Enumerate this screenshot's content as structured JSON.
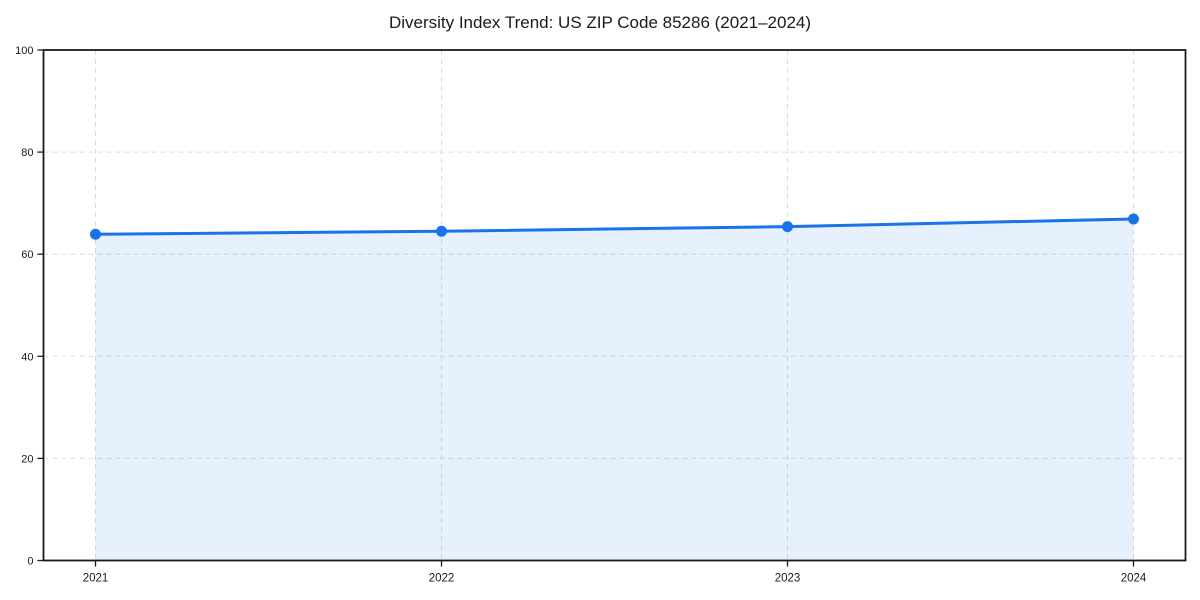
{
  "chart_data": {
    "type": "area",
    "title": "Diversity Index Trend: US ZIP Code 85286 (2021–2024)",
    "categories": [
      "2021",
      "2022",
      "2023",
      "2024"
    ],
    "series": [
      {
        "name": "Diversity Index",
        "values": [
          63.9,
          64.5,
          65.4,
          66.9
        ]
      }
    ],
    "xlabel": "",
    "ylabel": "",
    "ylim": [
      0,
      100
    ],
    "yticks": [
      0,
      20,
      40,
      60,
      80,
      100
    ],
    "grid": true,
    "grid_style": "dashed",
    "legend": false,
    "marker": "circle",
    "colors": {
      "line": "#1a73e8",
      "marker": "#1a73e8",
      "fill": "#1a73e8",
      "fill_opacity": 0.105,
      "grid": "#dcdcdc",
      "axis": "#1a1a1a",
      "text": "#1a1a1a",
      "background": "#ffffff"
    }
  }
}
